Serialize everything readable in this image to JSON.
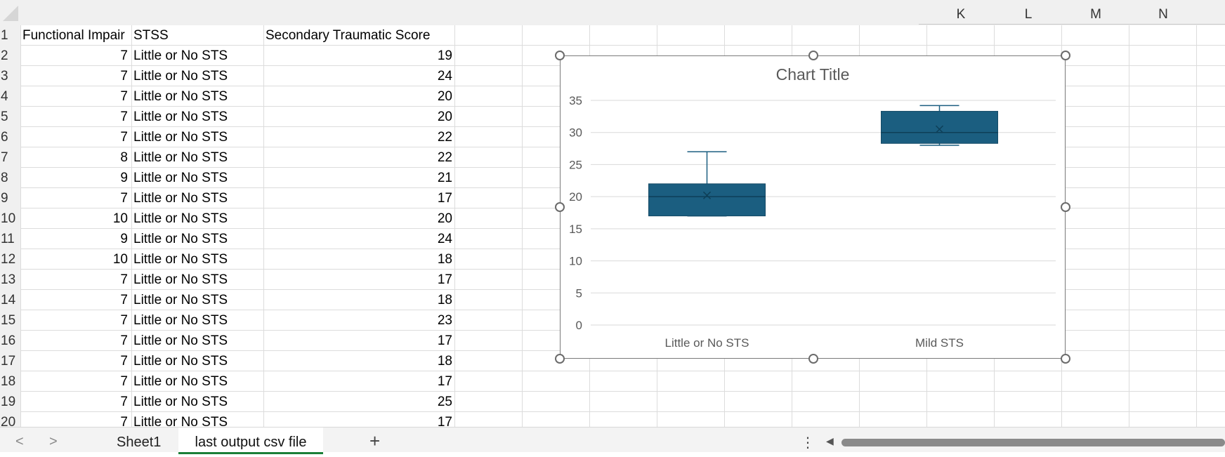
{
  "columns": [
    "K",
    "L",
    "M",
    "N"
  ],
  "rows": [
    {
      "n": "1",
      "a": "Functional Impair",
      "b": "STSS",
      "c": "Secondary Traumatic Score",
      "d": ""
    },
    {
      "n": "2",
      "a": "7",
      "b": "Little or No STS",
      "c": "",
      "d": "19"
    },
    {
      "n": "3",
      "a": "7",
      "b": "Little or No STS",
      "c": "",
      "d": "24"
    },
    {
      "n": "4",
      "a": "7",
      "b": "Little or No STS",
      "c": "",
      "d": "20"
    },
    {
      "n": "5",
      "a": "7",
      "b": "Little or No STS",
      "c": "",
      "d": "20"
    },
    {
      "n": "6",
      "a": "7",
      "b": "Little or No STS",
      "c": "",
      "d": "22"
    },
    {
      "n": "7",
      "a": "8",
      "b": "Little or No STS",
      "c": "",
      "d": "22"
    },
    {
      "n": "8",
      "a": "9",
      "b": "Little or No STS",
      "c": "",
      "d": "21"
    },
    {
      "n": "9",
      "a": "7",
      "b": "Little or No STS",
      "c": "",
      "d": "17"
    },
    {
      "n": "10",
      "a": "10",
      "b": "Little or No STS",
      "c": "",
      "d": "20"
    },
    {
      "n": "11",
      "a": "9",
      "b": "Little or No STS",
      "c": "",
      "d": "24"
    },
    {
      "n": "12",
      "a": "10",
      "b": "Little or No STS",
      "c": "",
      "d": "18"
    },
    {
      "n": "13",
      "a": "7",
      "b": "Little or No STS",
      "c": "",
      "d": "17"
    },
    {
      "n": "14",
      "a": "7",
      "b": "Little or No STS",
      "c": "",
      "d": "18"
    },
    {
      "n": "15",
      "a": "7",
      "b": "Little or No STS",
      "c": "",
      "d": "23"
    },
    {
      "n": "16",
      "a": "7",
      "b": "Little or No STS",
      "c": "",
      "d": "17"
    },
    {
      "n": "17",
      "a": "7",
      "b": "Little or No STS",
      "c": "",
      "d": "18"
    },
    {
      "n": "18",
      "a": "7",
      "b": "Little or No STS",
      "c": "",
      "d": "17"
    },
    {
      "n": "19",
      "a": "7",
      "b": "Little or No STS",
      "c": "",
      "d": "25"
    },
    {
      "n": "20",
      "a": "7",
      "b": "Little or No STS",
      "c": "",
      "d": "17"
    }
  ],
  "chart_data": {
    "type": "box",
    "title": "Chart Title",
    "categories": [
      "Little or No STS",
      "Mild STS"
    ],
    "ylim": [
      0,
      35
    ],
    "yticks": [
      "0",
      "5",
      "10",
      "15",
      "20",
      "25",
      "30",
      "35"
    ],
    "grid": true,
    "series": [
      {
        "min": 17,
        "q1": 17,
        "median": 20,
        "q3": 22,
        "max": 27,
        "mean": 20.2
      },
      {
        "min": 28,
        "q1": 28.3,
        "median": 30,
        "q3": 33.3,
        "max": 34.2,
        "mean": 30.5
      }
    ],
    "box_color": "#1b5e80"
  },
  "tabs": {
    "prev": "<",
    "next": ">",
    "sheet1": "Sheet1",
    "active": "last output csv file",
    "add": "+",
    "more": "⋮",
    "scroll_left": "◀"
  },
  "icons": {
    "select_all": "select-all-triangle",
    "tab_prev": "chevron-left-icon",
    "tab_next": "chevron-right-icon",
    "add_sheet": "plus-icon",
    "more": "more-vertical-icon"
  }
}
